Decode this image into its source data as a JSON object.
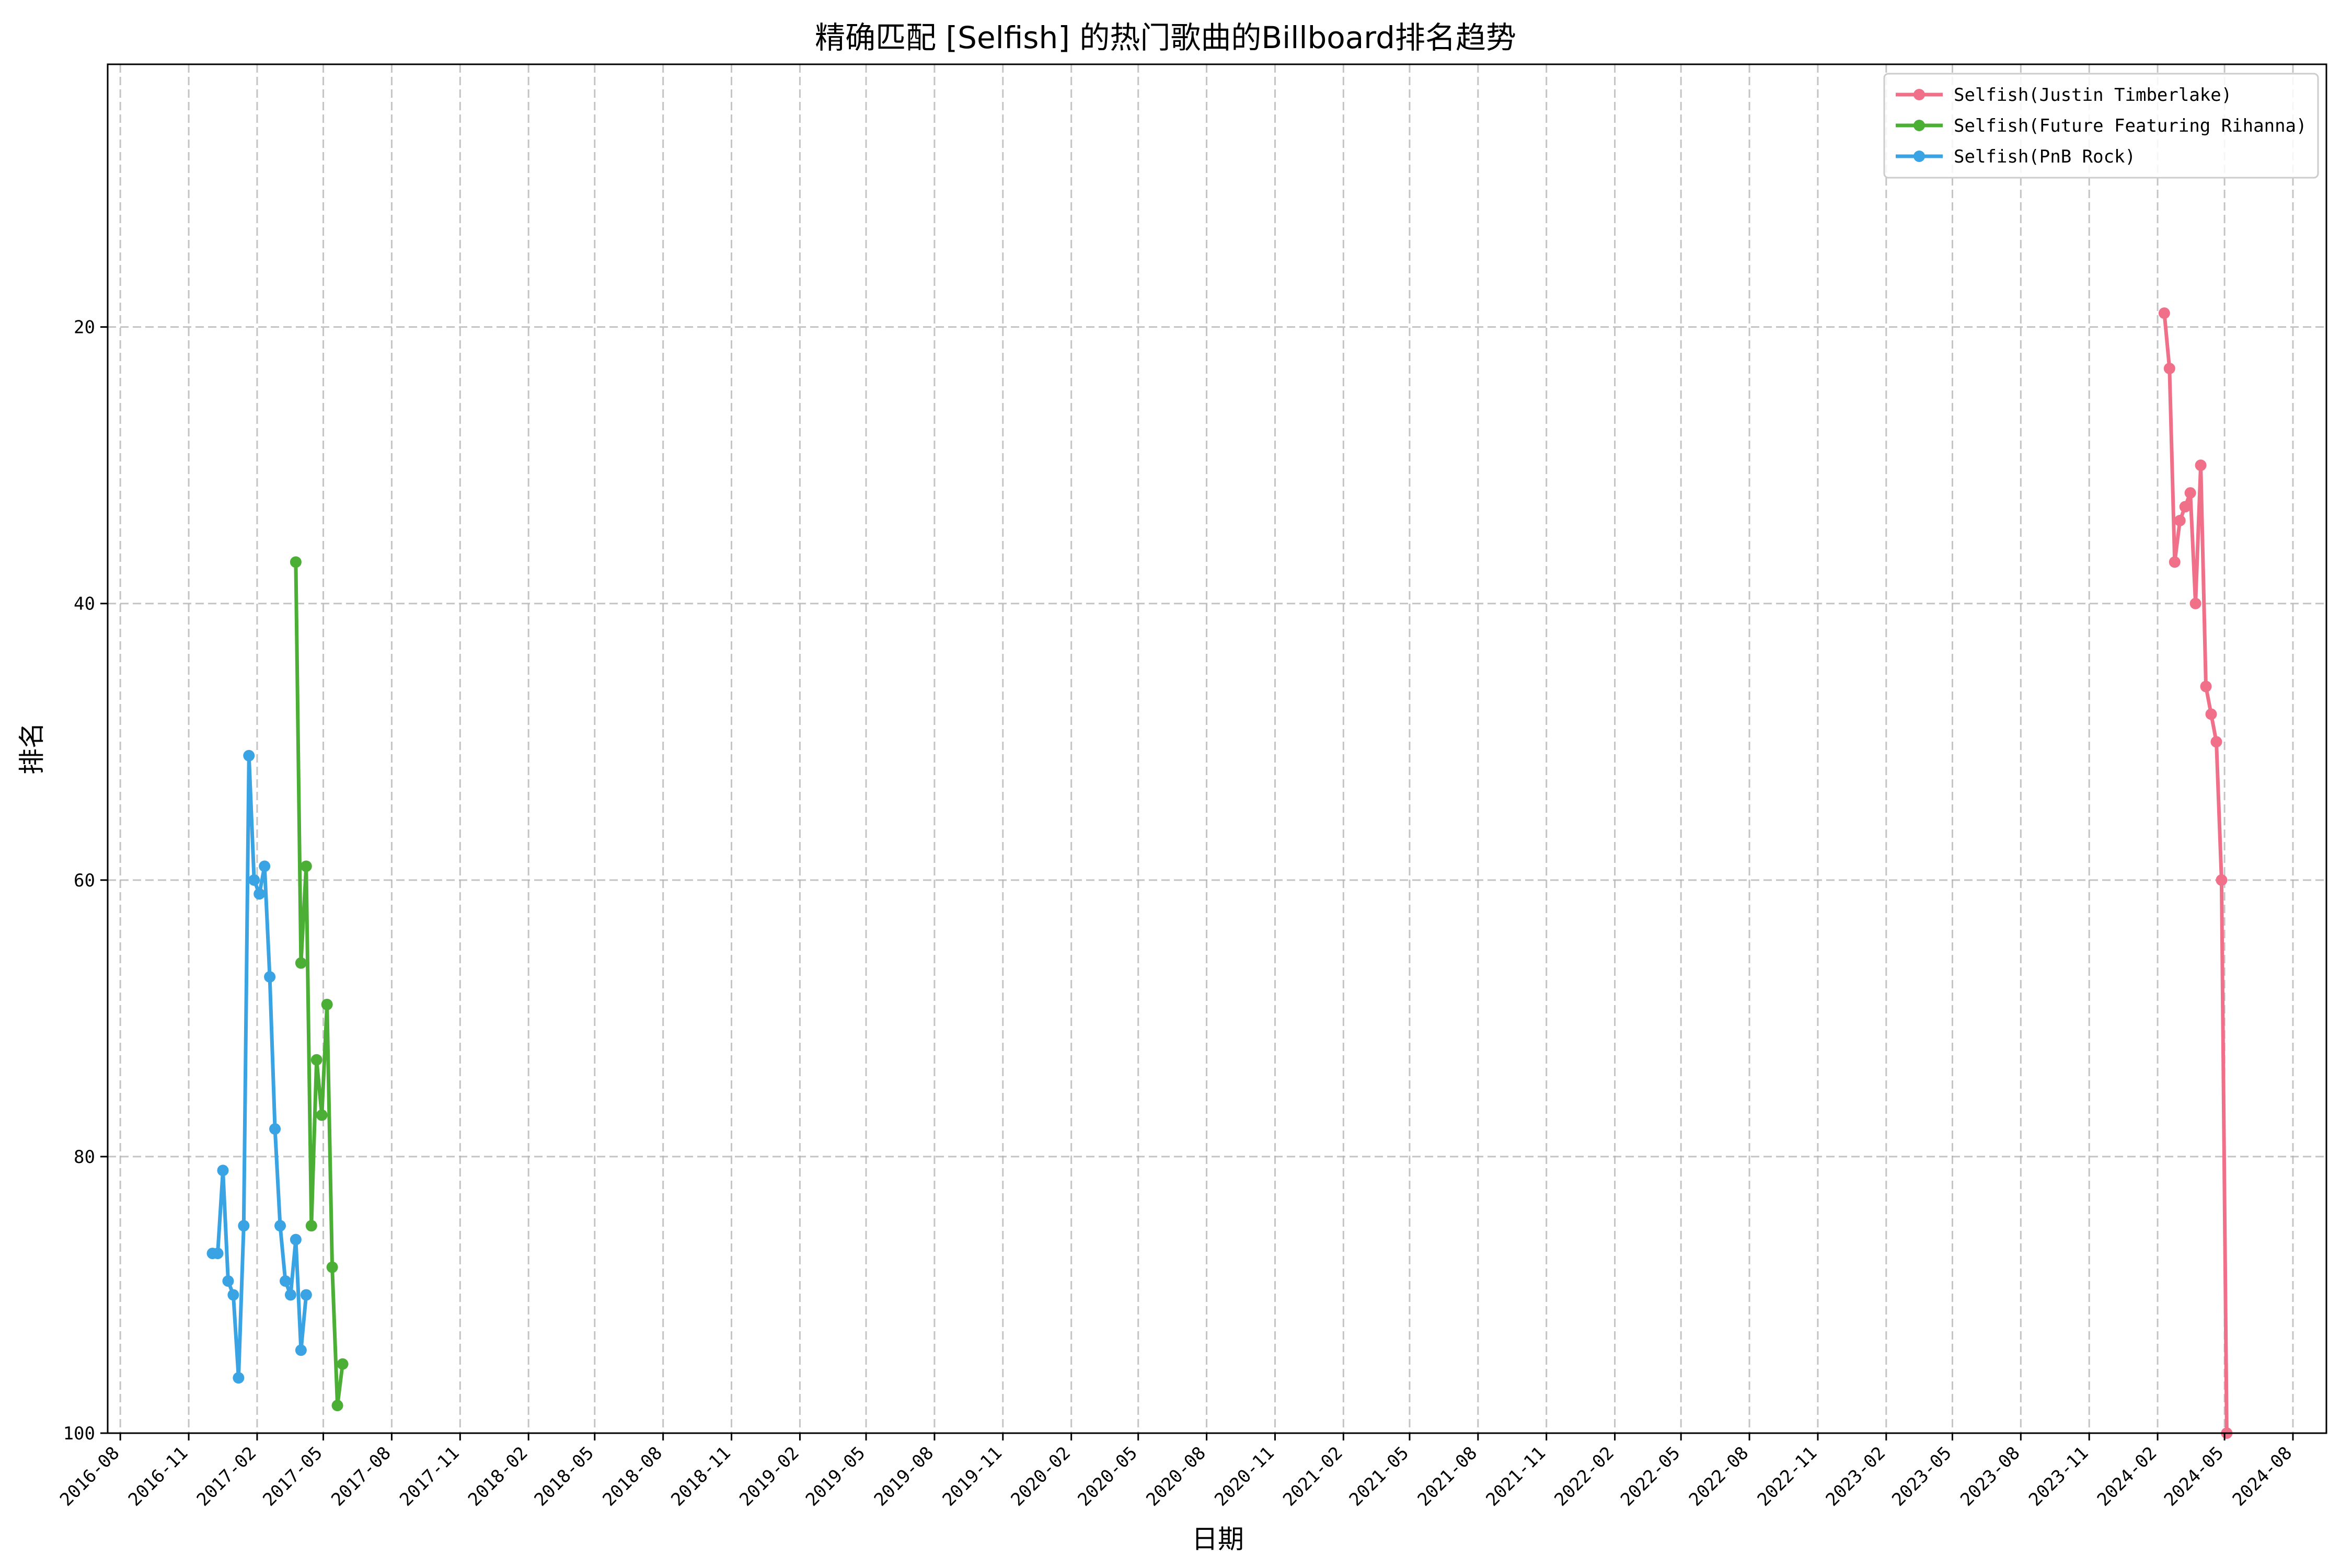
{
  "chart_data": {
    "type": "line",
    "title": "精确匹配 [Selfish] 的热门歌曲的Billboard排名趋势",
    "xlabel": "日期",
    "ylabel": "排名",
    "y_inverted": true,
    "ylim": [
      100,
      1
    ],
    "xlim": [
      "2016-07-15",
      "2024-09-15"
    ],
    "grid": true,
    "legend_position": "top-right",
    "x_ticks": [
      "2016-08",
      "2016-11",
      "2017-02",
      "2017-05",
      "2017-08",
      "2017-11",
      "2018-02",
      "2018-05",
      "2018-08",
      "2018-11",
      "2019-02",
      "2019-05",
      "2019-08",
      "2019-11",
      "2020-02",
      "2020-05",
      "2020-08",
      "2020-11",
      "2021-02",
      "2021-05",
      "2021-08",
      "2021-11",
      "2022-02",
      "2022-05",
      "2022-08",
      "2022-11",
      "2023-02",
      "2023-05",
      "2023-08",
      "2023-11",
      "2024-02",
      "2024-05",
      "2024-08"
    ],
    "y_ticks": [
      20,
      40,
      60,
      80,
      100
    ],
    "series": [
      {
        "name": "Selfish(Justin Timberlake)",
        "color": "#f0708a",
        "points": [
          {
            "x": "2024-02-10",
            "y": 19
          },
          {
            "x": "2024-02-17",
            "y": 23
          },
          {
            "x": "2024-02-24",
            "y": 37
          },
          {
            "x": "2024-03-02",
            "y": 34
          },
          {
            "x": "2024-03-09",
            "y": 33
          },
          {
            "x": "2024-03-16",
            "y": 32
          },
          {
            "x": "2024-03-23",
            "y": 40
          },
          {
            "x": "2024-03-30",
            "y": 30
          },
          {
            "x": "2024-04-06",
            "y": 46
          },
          {
            "x": "2024-04-13",
            "y": 48
          },
          {
            "x": "2024-04-20",
            "y": 50
          },
          {
            "x": "2024-04-27",
            "y": 60
          },
          {
            "x": "2024-05-04",
            "y": 100
          }
        ]
      },
      {
        "name": "Selfish(Future Featuring Rihanna)",
        "color": "#4caf35",
        "points": [
          {
            "x": "2017-03-25",
            "y": 37
          },
          {
            "x": "2017-04-01",
            "y": 66
          },
          {
            "x": "2017-04-08",
            "y": 59
          },
          {
            "x": "2017-04-15",
            "y": 85
          },
          {
            "x": "2017-04-22",
            "y": 73
          },
          {
            "x": "2017-04-29",
            "y": 77
          },
          {
            "x": "2017-05-06",
            "y": 69
          },
          {
            "x": "2017-05-13",
            "y": 88
          },
          {
            "x": "2017-05-20",
            "y": 98
          },
          {
            "x": "2017-05-27",
            "y": 95
          }
        ]
      },
      {
        "name": "Selfish(PnB Rock)",
        "color": "#3aa3e3",
        "points": [
          {
            "x": "2016-12-03",
            "y": 87
          },
          {
            "x": "2016-12-10",
            "y": 87
          },
          {
            "x": "2016-12-17",
            "y": 81
          },
          {
            "x": "2016-12-24",
            "y": 89
          },
          {
            "x": "2016-12-31",
            "y": 90
          },
          {
            "x": "2017-01-07",
            "y": 96
          },
          {
            "x": "2017-01-14",
            "y": 85
          },
          {
            "x": "2017-01-21",
            "y": 51
          },
          {
            "x": "2017-01-28",
            "y": 60
          },
          {
            "x": "2017-02-04",
            "y": 61
          },
          {
            "x": "2017-02-11",
            "y": 59
          },
          {
            "x": "2017-02-18",
            "y": 67
          },
          {
            "x": "2017-02-25",
            "y": 78
          },
          {
            "x": "2017-03-04",
            "y": 85
          },
          {
            "x": "2017-03-11",
            "y": 89
          },
          {
            "x": "2017-03-18",
            "y": 90
          },
          {
            "x": "2017-03-25",
            "y": 86
          },
          {
            "x": "2017-04-01",
            "y": 94
          },
          {
            "x": "2017-04-08",
            "y": 90
          }
        ]
      }
    ]
  }
}
